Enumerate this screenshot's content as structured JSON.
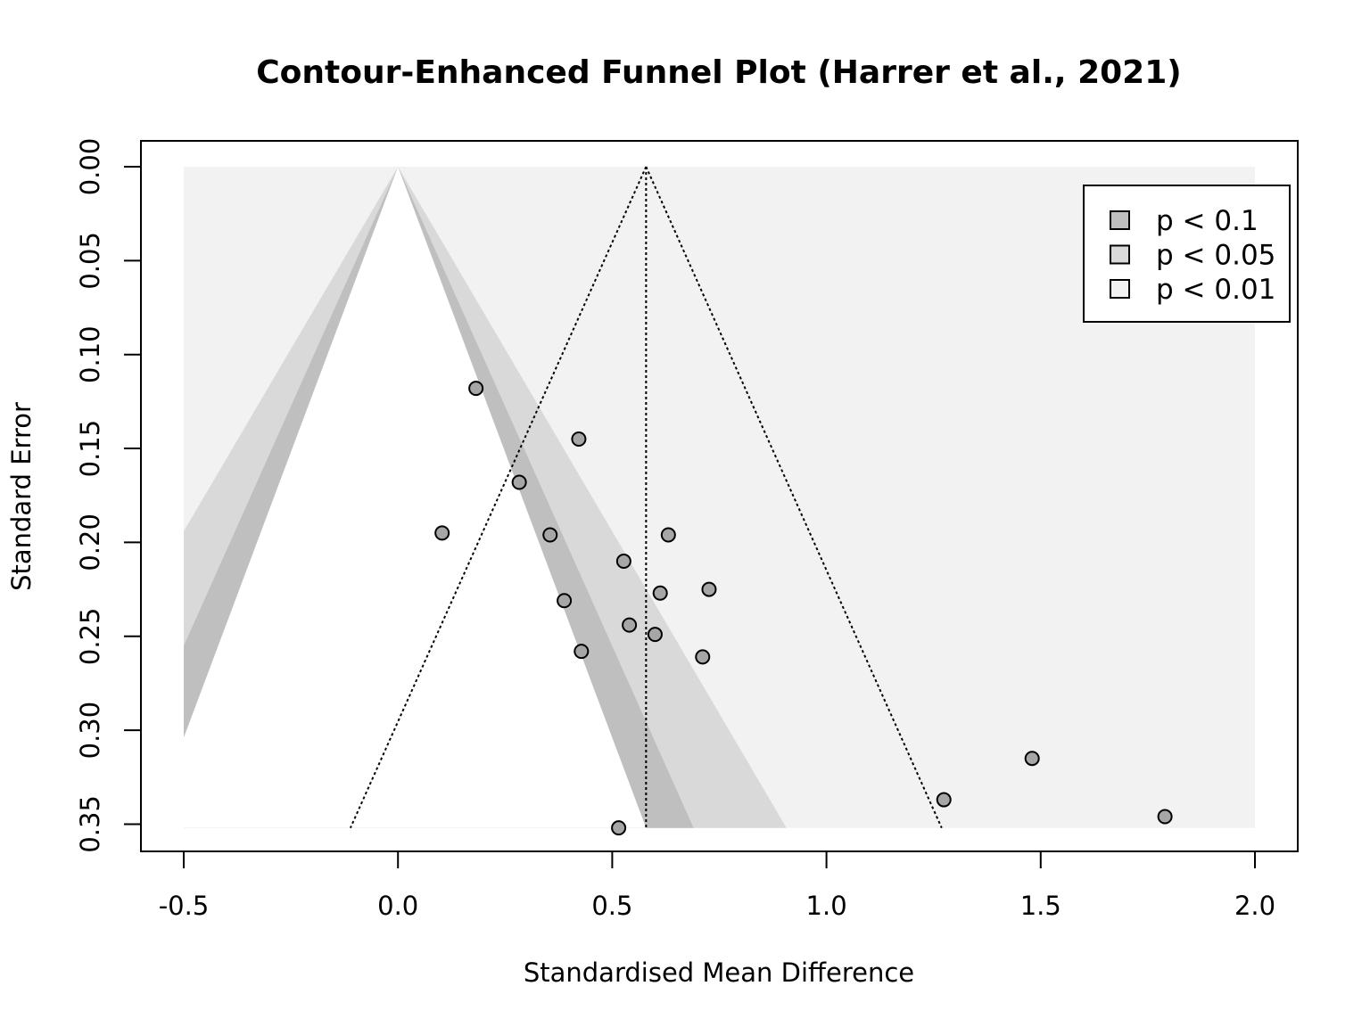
{
  "chart_data": {
    "type": "scatter",
    "title": "Contour-Enhanced Funnel Plot (Harrer et al., 2021)",
    "xlabel": "Standardised Mean Difference",
    "ylabel": "Standard Error",
    "xlim": [
      -0.5,
      2.0
    ],
    "ylim": [
      0.352,
      0.0
    ],
    "y_reversed": true,
    "grid": false,
    "x_ticks": [
      {
        "value": -0.5,
        "label": "-0.5"
      },
      {
        "value": 0.0,
        "label": "0.0"
      },
      {
        "value": 0.5,
        "label": "0.5"
      },
      {
        "value": 1.0,
        "label": "1.0"
      },
      {
        "value": 1.5,
        "label": "1.5"
      },
      {
        "value": 2.0,
        "label": "2.0"
      }
    ],
    "y_ticks": [
      {
        "value": 0.0,
        "label": "0.00"
      },
      {
        "value": 0.05,
        "label": "0.05"
      },
      {
        "value": 0.1,
        "label": "0.10"
      },
      {
        "value": 0.15,
        "label": "0.15"
      },
      {
        "value": 0.2,
        "label": "0.20"
      },
      {
        "value": 0.25,
        "label": "0.25"
      },
      {
        "value": 0.3,
        "label": "0.30"
      },
      {
        "value": 0.35,
        "label": "0.35"
      }
    ],
    "contours": [
      {
        "label": "p < 0.1",
        "z": 1.645,
        "color": "#bfbfbf"
      },
      {
        "label": "p < 0.05",
        "z": 1.96,
        "color": "#d9d9d9"
      },
      {
        "label": "p < 0.01",
        "z": 2.576,
        "color": "#f2f2f2"
      }
    ],
    "contour_center": 0.0,
    "pooled_estimate": 0.579,
    "funnel_z": 1.96,
    "legend_position": "top-right",
    "point_color": "#a6a6a6",
    "points": [
      {
        "x": 0.182,
        "y": 0.118
      },
      {
        "x": 0.422,
        "y": 0.145
      },
      {
        "x": 0.283,
        "y": 0.168
      },
      {
        "x": 0.103,
        "y": 0.195
      },
      {
        "x": 0.355,
        "y": 0.196
      },
      {
        "x": 0.631,
        "y": 0.196
      },
      {
        "x": 0.527,
        "y": 0.21
      },
      {
        "x": 0.726,
        "y": 0.225
      },
      {
        "x": 0.612,
        "y": 0.227
      },
      {
        "x": 0.388,
        "y": 0.231
      },
      {
        "x": 0.54,
        "y": 0.244
      },
      {
        "x": 0.6,
        "y": 0.249
      },
      {
        "x": 0.428,
        "y": 0.258
      },
      {
        "x": 0.711,
        "y": 0.261
      },
      {
        "x": 1.48,
        "y": 0.315
      },
      {
        "x": 1.274,
        "y": 0.337
      },
      {
        "x": 1.79,
        "y": 0.346
      },
      {
        "x": 0.515,
        "y": 0.352
      }
    ]
  }
}
